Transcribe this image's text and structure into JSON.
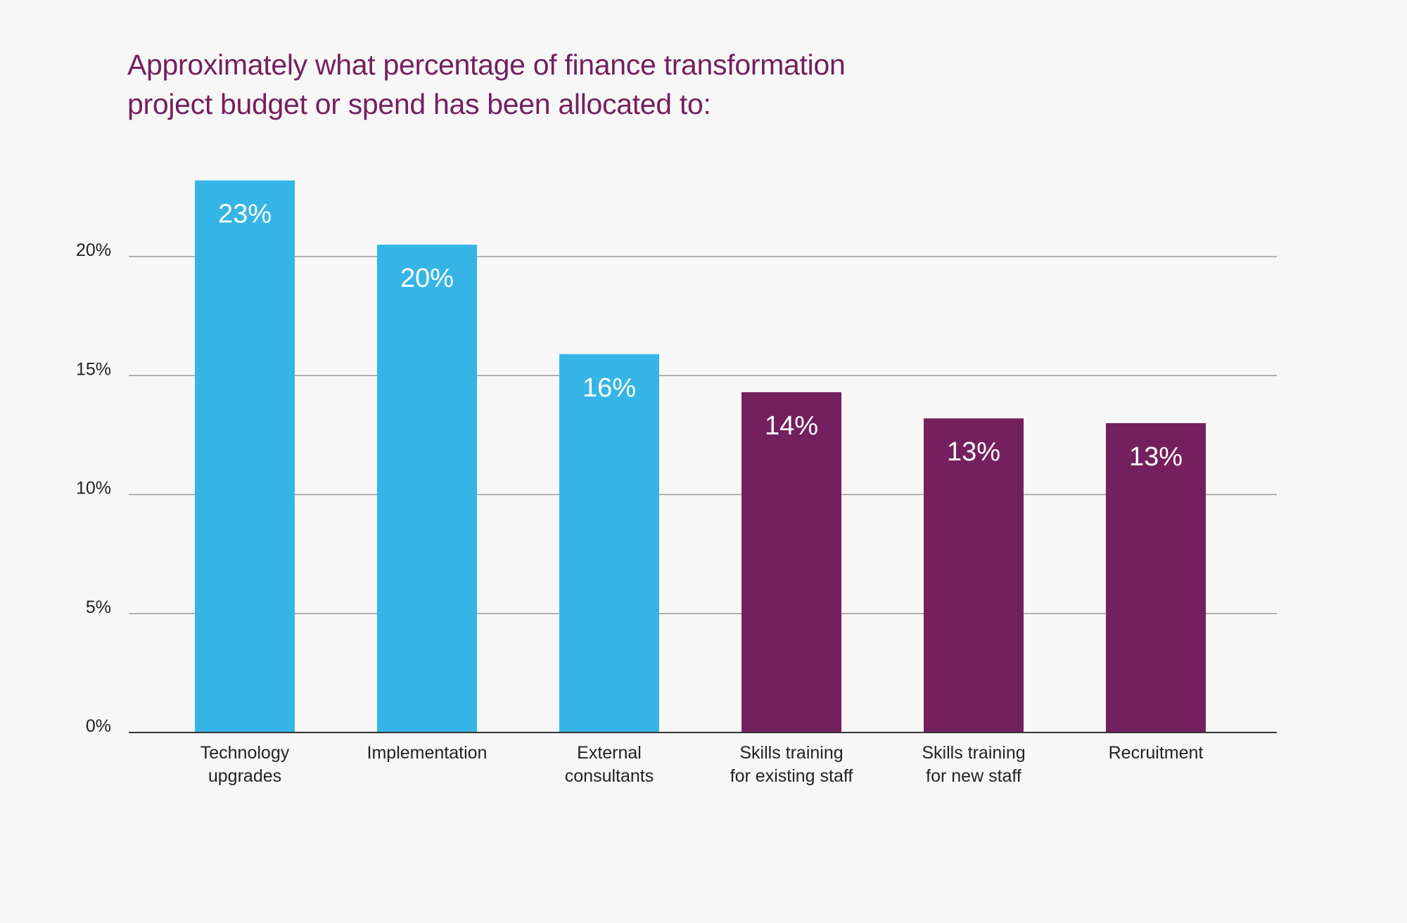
{
  "chart_data": {
    "type": "bar",
    "title_lines": [
      "Approximately what percentage of finance transformation",
      "project budget or spend has been allocated to:"
    ],
    "xlabel": "",
    "ylabel": "",
    "ylim": [
      0,
      25
    ],
    "yticks": [
      {
        "value": 0,
        "label": "0%"
      },
      {
        "value": 5,
        "label": "5%"
      },
      {
        "value": 10,
        "label": "10%"
      },
      {
        "value": 15,
        "label": "15%"
      },
      {
        "value": 20,
        "label": "20%"
      }
    ],
    "grid": true,
    "categories": [
      [
        "Technology",
        "upgrades"
      ],
      [
        "Implementation"
      ],
      [
        "External",
        "consultants"
      ],
      [
        "Skills training",
        "for existing staff"
      ],
      [
        "Skills training",
        "for new staff"
      ],
      [
        "Recruitment"
      ]
    ],
    "values": [
      23.2,
      20.5,
      15.9,
      14.3,
      13.2,
      13.0
    ],
    "data_labels": [
      "23%",
      "20%",
      "16%",
      "14%",
      "13%",
      "13%"
    ],
    "bar_colors": [
      "#35b5e5",
      "#35b5e5",
      "#35b5e5",
      "#741f5e",
      "#741f5e",
      "#741f5e"
    ]
  },
  "colors": {
    "background": "#f7f7f7",
    "title": "#741f5e",
    "axis_text": "#222222",
    "gridline": "#999999",
    "axis_line": "#333333",
    "data_label": "#ffffff"
  }
}
